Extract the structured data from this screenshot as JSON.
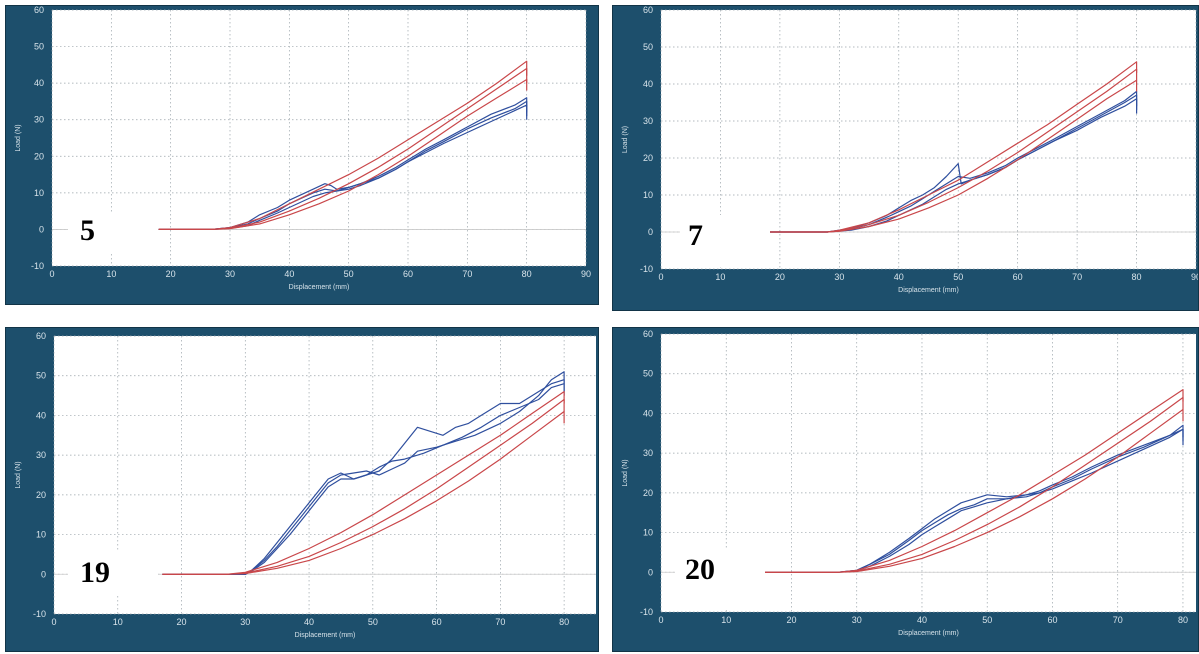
{
  "colors": {
    "frame": "#1d4f6c",
    "blue": "#2f4f9e",
    "red": "#c9474a"
  },
  "chart_data": [
    {
      "type": "line",
      "label": "5",
      "xlabel": "Displacement (mm)",
      "ylabel": "Load (N)",
      "xlim": [
        0,
        90
      ],
      "ylim": [
        -10,
        60
      ],
      "xticks": [
        0,
        10,
        20,
        30,
        40,
        50,
        60,
        70,
        80,
        90
      ],
      "yticks": [
        -10,
        0,
        10,
        20,
        30,
        40,
        50,
        60
      ],
      "grid": true,
      "series": [
        {
          "color": "blue",
          "x": [
            18,
            27,
            30,
            33,
            35,
            38,
            40,
            42,
            44,
            46,
            47,
            48,
            50,
            52,
            55,
            58,
            60,
            63,
            66,
            70,
            74,
            78,
            80,
            80
          ],
          "y": [
            0,
            0,
            0.5,
            2,
            4,
            6,
            8,
            9.5,
            11,
            12.5,
            12,
            11,
            11.5,
            12.5,
            14,
            16.5,
            18.5,
            21,
            23.5,
            26.5,
            29.5,
            32.5,
            34,
            30
          ]
        },
        {
          "color": "blue",
          "x": [
            18,
            27,
            30,
            33,
            35,
            38,
            40,
            42,
            44,
            46,
            48,
            50,
            52,
            55,
            58,
            60,
            63,
            66,
            70,
            74,
            78,
            80,
            80
          ],
          "y": [
            0,
            0,
            0.5,
            1.5,
            3,
            5,
            7,
            8.5,
            10,
            11,
            10.5,
            11,
            12,
            14,
            16.5,
            18.5,
            21.5,
            24,
            27.5,
            30.5,
            33,
            35,
            31
          ]
        },
        {
          "color": "blue",
          "x": [
            18,
            27,
            30,
            33,
            35,
            38,
            40,
            42,
            44,
            46,
            48,
            50,
            52,
            55,
            58,
            60,
            63,
            66,
            70,
            74,
            78,
            80,
            80
          ],
          "y": [
            0,
            0,
            0.3,
            1,
            2.5,
            4.5,
            6,
            7.5,
            9,
            10,
            10.5,
            11.5,
            12.5,
            14.5,
            17,
            19,
            22,
            24.5,
            28,
            31.5,
            34,
            36,
            32
          ]
        },
        {
          "color": "red",
          "x": [
            18,
            27,
            30,
            35,
            40,
            45,
            50,
            55,
            60,
            65,
            70,
            75,
            80,
            80
          ],
          "y": [
            0,
            0,
            0.5,
            3,
            7,
            11,
            15,
            19.5,
            24.5,
            29.5,
            34.5,
            40,
            46,
            42
          ]
        },
        {
          "color": "red",
          "x": [
            18,
            27,
            30,
            35,
            40,
            45,
            50,
            55,
            60,
            65,
            70,
            75,
            80,
            80
          ],
          "y": [
            0,
            0,
            0.3,
            2,
            5,
            8.5,
            12.5,
            17,
            22,
            27.5,
            33,
            38.5,
            44,
            40
          ]
        },
        {
          "color": "red",
          "x": [
            18,
            27,
            30,
            35,
            40,
            45,
            50,
            55,
            60,
            65,
            70,
            75,
            80,
            80
          ],
          "y": [
            0,
            0,
            0.2,
            1.5,
            4,
            7,
            10.5,
            15,
            20,
            25.5,
            31,
            36,
            41,
            38
          ]
        }
      ]
    },
    {
      "type": "line",
      "label": "7",
      "xlabel": "Displacement (mm)",
      "ylabel": "Load (N)",
      "xlim": [
        0,
        90
      ],
      "ylim": [
        -10,
        60
      ],
      "xticks": [
        0,
        10,
        20,
        30,
        40,
        50,
        60,
        70,
        80,
        90
      ],
      "yticks": [
        -10,
        0,
        10,
        20,
        30,
        40,
        50,
        60
      ],
      "grid": true,
      "series": [
        {
          "color": "blue",
          "x": [
            18,
            28,
            32,
            35,
            38,
            40,
            42,
            44,
            46,
            48,
            50,
            50.5,
            52,
            55,
            58,
            60,
            63,
            66,
            70,
            74,
            78,
            80,
            80
          ],
          "y": [
            0,
            0,
            1,
            2.5,
            4.5,
            6.5,
            8.5,
            10,
            12,
            15,
            18.5,
            13,
            14,
            15.5,
            17.5,
            19.5,
            22,
            24.5,
            28,
            31.5,
            35,
            37,
            33
          ]
        },
        {
          "color": "blue",
          "x": [
            18,
            28,
            32,
            35,
            38,
            40,
            42,
            44,
            46,
            48,
            50,
            52,
            55,
            58,
            60,
            63,
            66,
            70,
            74,
            78,
            80,
            80
          ],
          "y": [
            0,
            0,
            0.8,
            2,
            4,
            5.5,
            7,
            9,
            11,
            13,
            15,
            14.5,
            16,
            18,
            20,
            22.5,
            25,
            28.5,
            32,
            35.5,
            38,
            34
          ]
        },
        {
          "color": "blue",
          "x": [
            18,
            28,
            32,
            35,
            38,
            40,
            42,
            44,
            46,
            48,
            50,
            52,
            55,
            58,
            60,
            63,
            66,
            70,
            74,
            78,
            80,
            80
          ],
          "y": [
            0,
            0,
            0.5,
            1.5,
            3,
            4.5,
            6,
            7.5,
            9.5,
            11.5,
            13,
            14,
            15.5,
            17.5,
            19.5,
            22,
            24.5,
            27.5,
            31,
            34,
            36,
            32
          ]
        },
        {
          "color": "red",
          "x": [
            18,
            28,
            30,
            35,
            40,
            45,
            50,
            55,
            60,
            65,
            70,
            75,
            80,
            80
          ],
          "y": [
            0,
            0,
            0.5,
            2.5,
            6,
            10,
            14,
            19,
            24,
            29,
            34.5,
            40,
            46,
            43
          ]
        },
        {
          "color": "red",
          "x": [
            18,
            28,
            30,
            35,
            40,
            45,
            50,
            55,
            60,
            65,
            70,
            75,
            80,
            80
          ],
          "y": [
            0,
            0,
            0.3,
            2,
            4.5,
            8,
            12,
            16.5,
            21.5,
            27,
            32.5,
            38,
            44,
            41
          ]
        },
        {
          "color": "red",
          "x": [
            18,
            28,
            30,
            35,
            40,
            45,
            50,
            55,
            60,
            65,
            70,
            75,
            80,
            80
          ],
          "y": [
            0,
            0,
            0.2,
            1.5,
            3.5,
            6.5,
            10,
            14.5,
            19.5,
            25,
            30.5,
            36,
            41,
            38
          ]
        }
      ]
    },
    {
      "type": "line",
      "label": "19",
      "xlabel": "Displacement (mm)",
      "ylabel": "Load (N)",
      "xlim": [
        0,
        85
      ],
      "ylim": [
        -10,
        60
      ],
      "xticks": [
        0,
        10,
        20,
        30,
        40,
        50,
        60,
        70,
        80
      ],
      "yticks": [
        -10,
        0,
        10,
        20,
        30,
        40,
        50,
        60
      ],
      "grid": true,
      "series": [
        {
          "color": "blue",
          "x": [
            17,
            30,
            31,
            33,
            35,
            37,
            39,
            41,
            43,
            45,
            47,
            49,
            51,
            53,
            55,
            57,
            59,
            61,
            63,
            65,
            67,
            70,
            73,
            76,
            78,
            80,
            80
          ],
          "y": [
            0,
            0,
            1,
            4,
            8,
            12,
            16,
            20,
            24,
            25.5,
            24,
            25,
            26,
            29,
            33,
            37,
            36,
            35,
            37,
            38,
            40,
            43,
            43,
            46,
            48,
            49,
            46
          ]
        },
        {
          "color": "blue",
          "x": [
            17,
            30,
            31,
            33,
            35,
            37,
            39,
            41,
            43,
            45,
            47,
            49,
            51,
            53,
            55,
            57,
            60,
            63,
            66,
            70,
            73,
            76,
            78,
            80,
            80
          ],
          "y": [
            0,
            0,
            1,
            3.5,
            7,
            11,
            15,
            19,
            23,
            25,
            25.5,
            26,
            25,
            26.5,
            28,
            31,
            32,
            33.5,
            35,
            38,
            41,
            45,
            49,
            51,
            48
          ]
        },
        {
          "color": "blue",
          "x": [
            17,
            30,
            31,
            33,
            35,
            37,
            39,
            41,
            43,
            45,
            47,
            49,
            51,
            53,
            55,
            58,
            61,
            64,
            67,
            70,
            73,
            76,
            78,
            80,
            80
          ],
          "y": [
            0,
            0,
            0.8,
            3,
            6.5,
            10,
            14,
            18,
            22,
            24,
            24,
            25,
            27,
            28.5,
            29,
            30.5,
            32.5,
            34.5,
            37,
            40,
            42,
            44,
            47,
            48,
            45
          ]
        },
        {
          "color": "red",
          "x": [
            17,
            27,
            30,
            35,
            40,
            45,
            50,
            55,
            60,
            65,
            70,
            75,
            80,
            80
          ],
          "y": [
            0,
            0,
            0.5,
            3,
            6.5,
            10.5,
            15,
            20,
            25,
            30,
            35,
            40.5,
            46,
            43
          ]
        },
        {
          "color": "red",
          "x": [
            17,
            27,
            30,
            35,
            40,
            45,
            50,
            55,
            60,
            65,
            70,
            75,
            80,
            80
          ],
          "y": [
            0,
            0,
            0.3,
            2,
            4.5,
            8,
            12,
            16.5,
            21.5,
            27,
            32.5,
            38,
            44,
            41
          ]
        },
        {
          "color": "red",
          "x": [
            17,
            27,
            30,
            35,
            40,
            45,
            50,
            55,
            60,
            65,
            70,
            75,
            80,
            80
          ],
          "y": [
            0,
            0,
            0.2,
            1.5,
            3.5,
            6.5,
            10,
            14,
            18.5,
            23.5,
            29,
            35,
            41,
            38
          ]
        }
      ]
    },
    {
      "type": "line",
      "label": "20",
      "xlabel": "Displacement (mm)",
      "ylabel": "Load (N)",
      "xlim": [
        0,
        82
      ],
      "ylim": [
        -10,
        60
      ],
      "xticks": [
        0,
        10,
        20,
        30,
        40,
        50,
        60,
        70,
        80
      ],
      "yticks": [
        -10,
        0,
        10,
        20,
        30,
        40,
        50,
        60
      ],
      "grid": true,
      "series": [
        {
          "color": "blue",
          "x": [
            15,
            27,
            30,
            32,
            35,
            38,
            40,
            42,
            44,
            46,
            48,
            50,
            53,
            56,
            58,
            60,
            63,
            66,
            70,
            74,
            78,
            80,
            80
          ],
          "y": [
            0,
            0,
            0.5,
            2,
            5,
            8.5,
            11,
            13.5,
            15.5,
            17.5,
            18.5,
            19.5,
            19,
            19.5,
            20,
            21,
            23,
            25,
            28,
            31,
            34,
            36,
            32
          ]
        },
        {
          "color": "blue",
          "x": [
            15,
            27,
            30,
            32,
            35,
            38,
            40,
            42,
            44,
            46,
            48,
            50,
            53,
            56,
            58,
            60,
            63,
            66,
            70,
            74,
            78,
            80,
            80
          ],
          "y": [
            0,
            0,
            0.5,
            2,
            4.5,
            8,
            10.5,
            12.5,
            14.5,
            16,
            17,
            18.5,
            18.5,
            19,
            20,
            21.5,
            23.5,
            26,
            29,
            31.5,
            34.5,
            37,
            33
          ]
        },
        {
          "color": "blue",
          "x": [
            15,
            27,
            30,
            32,
            35,
            38,
            40,
            42,
            44,
            46,
            48,
            50,
            53,
            56,
            58,
            60,
            63,
            66,
            70,
            74,
            78,
            80,
            80
          ],
          "y": [
            0,
            0,
            0.4,
            1.5,
            4,
            7,
            9.5,
            11.5,
            13.5,
            15.5,
            16.5,
            17.5,
            18.5,
            19.5,
            20.5,
            22,
            24,
            26.5,
            29.5,
            32,
            34.5,
            36,
            34
          ]
        },
        {
          "color": "red",
          "x": [
            15,
            27,
            30,
            35,
            40,
            45,
            50,
            55,
            60,
            65,
            70,
            75,
            80,
            80
          ],
          "y": [
            0,
            0,
            0.5,
            3,
            6.5,
            10.5,
            15,
            19.5,
            24.5,
            29.5,
            35,
            40.5,
            46,
            43
          ]
        },
        {
          "color": "red",
          "x": [
            15,
            27,
            30,
            35,
            40,
            45,
            50,
            55,
            60,
            65,
            70,
            75,
            80,
            80
          ],
          "y": [
            0,
            0,
            0.3,
            2,
            4.5,
            8,
            12,
            16.5,
            21.5,
            27,
            32.5,
            38,
            44,
            41
          ]
        },
        {
          "color": "red",
          "x": [
            15,
            27,
            30,
            35,
            40,
            45,
            50,
            55,
            60,
            65,
            70,
            75,
            80,
            80
          ],
          "y": [
            0,
            0,
            0.2,
            1.5,
            3.5,
            6.5,
            10,
            14,
            18.5,
            23.5,
            29,
            35,
            41,
            38
          ]
        }
      ]
    }
  ]
}
